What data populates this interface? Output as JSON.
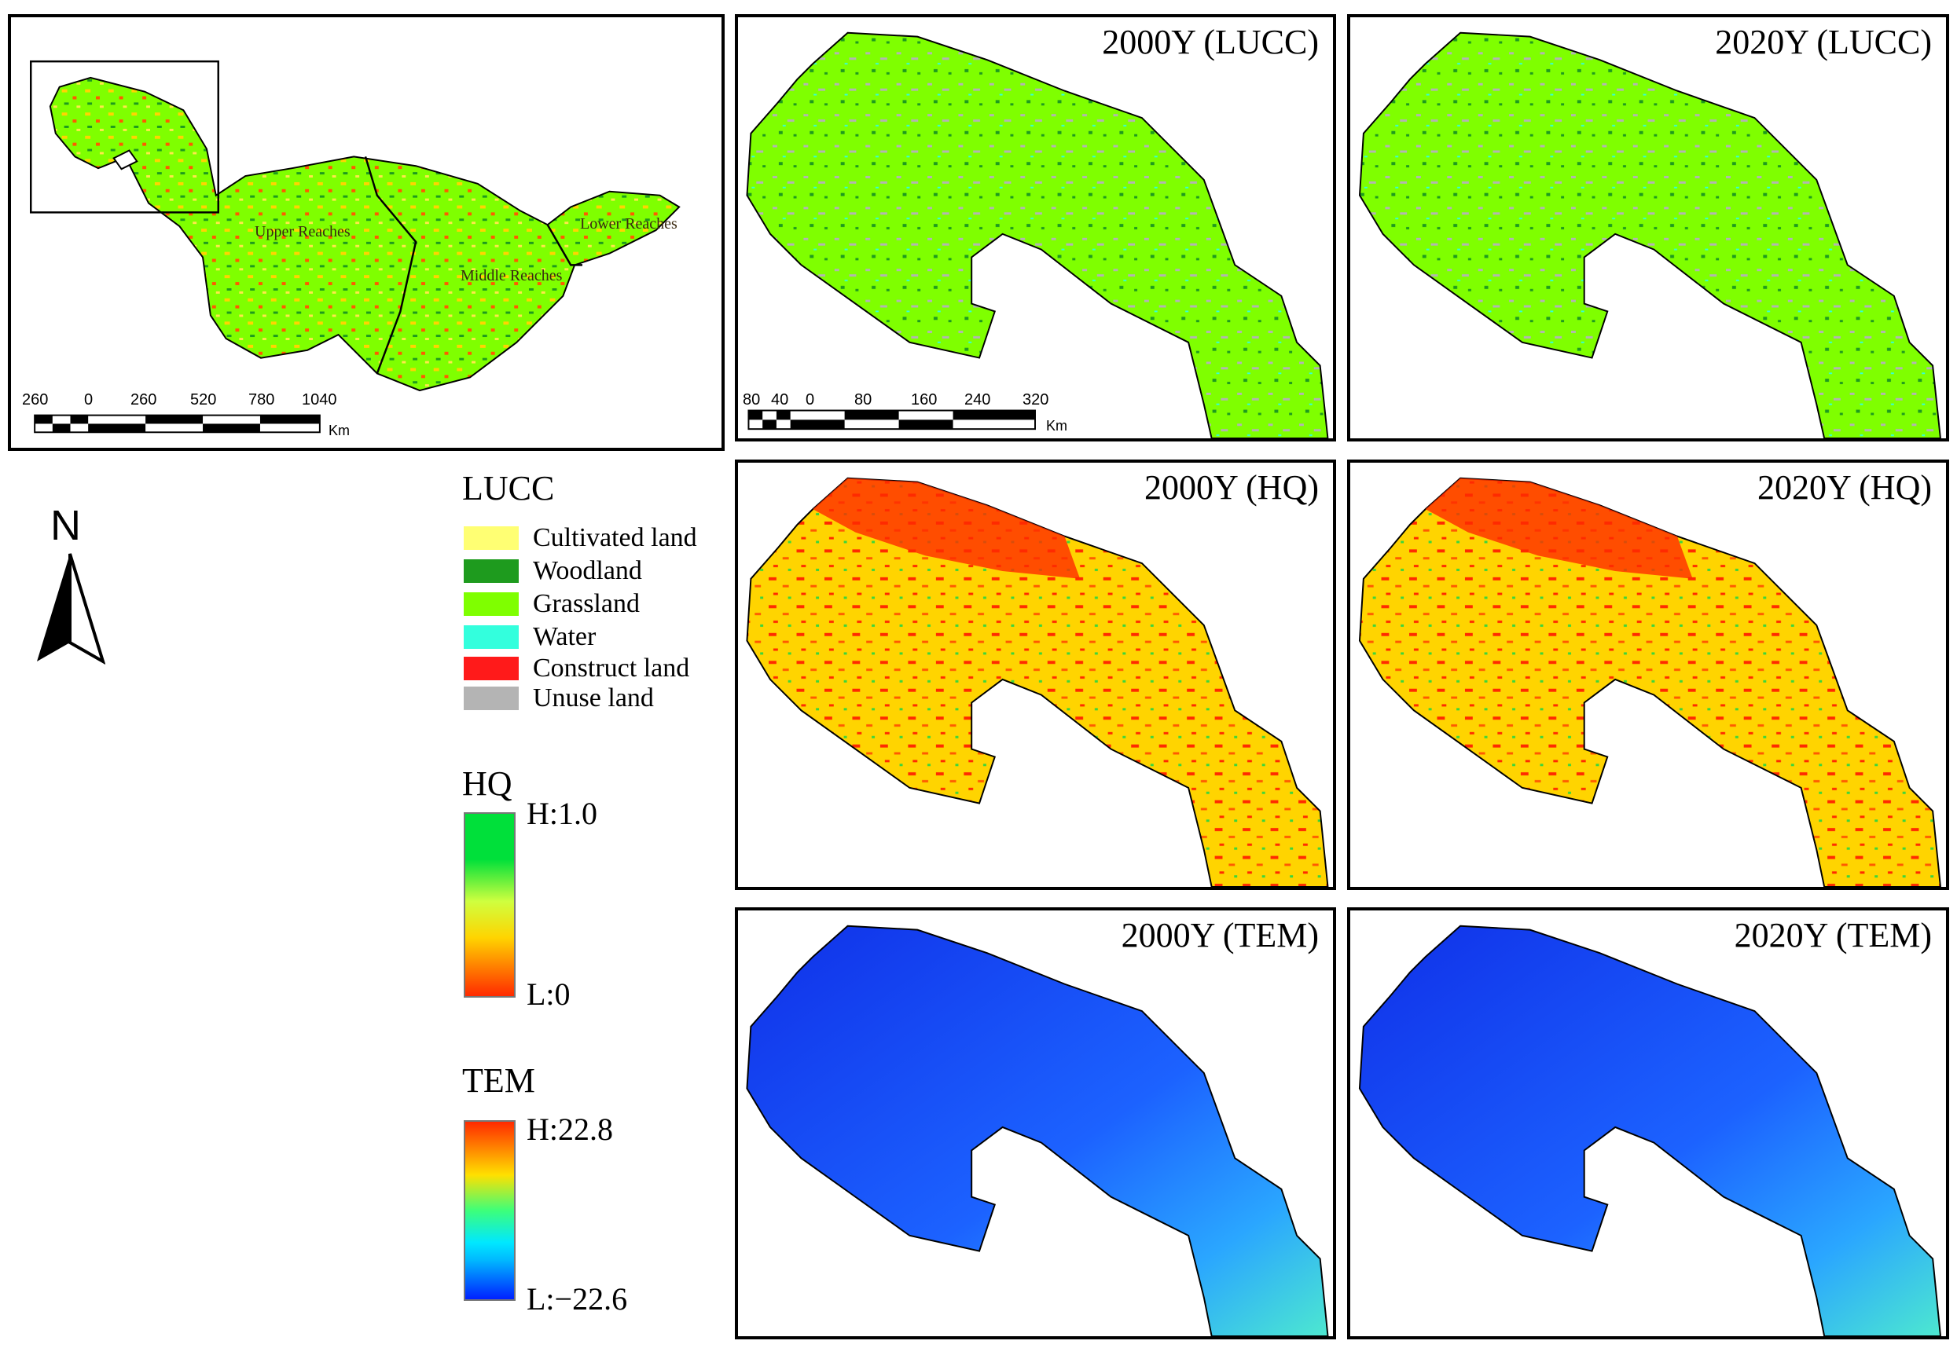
{
  "overview": {
    "regions": [
      "Upper Reaches",
      "Middle Reaches",
      "Lower Reaches"
    ],
    "scale": {
      "ticks": [
        "260",
        "0",
        "260",
        "520",
        "780",
        "1040"
      ],
      "unit": "Km"
    }
  },
  "inset": {
    "scale": {
      "ticks": [
        "80",
        "40",
        "0",
        "80",
        "160",
        "240",
        "320"
      ],
      "unit": "Km"
    }
  },
  "panels": [
    {
      "title": "2000Y (LUCC)",
      "layer": "LUCC"
    },
    {
      "title": "2020Y (LUCC)",
      "layer": "LUCC"
    },
    {
      "title": "2000Y (HQ)",
      "layer": "HQ"
    },
    {
      "title": "2020Y (HQ)",
      "layer": "HQ"
    },
    {
      "title": "2000Y (TEM)",
      "layer": "TEM"
    },
    {
      "title": "2020Y (TEM)",
      "layer": "TEM"
    }
  ],
  "north_arrow": {
    "label": "N"
  },
  "legend": {
    "lucc": {
      "title": "LUCC",
      "items": [
        {
          "label": "Cultivated land",
          "color": "#ffff73"
        },
        {
          "label": "Woodland",
          "color": "#1e9b1e"
        },
        {
          "label": "Grassland",
          "color": "#7fff00"
        },
        {
          "label": "Water",
          "color": "#33ffdd"
        },
        {
          "label": "Construct land",
          "color": "#ff1a1a"
        },
        {
          "label": "Unuse land",
          "color": "#b4b4b4"
        }
      ]
    },
    "hq": {
      "title": "HQ",
      "high": "H:1.0",
      "low": "L:0",
      "colors": [
        "#00e03a",
        "#cfff3f",
        "#ffd400",
        "#ff2a00"
      ]
    },
    "tem": {
      "title": "TEM",
      "high": "H:22.8",
      "low": "L:−22.6",
      "colors": [
        "#ff2a00",
        "#ffe000",
        "#3dff7a",
        "#00b8ff",
        "#0020ff"
      ]
    }
  }
}
